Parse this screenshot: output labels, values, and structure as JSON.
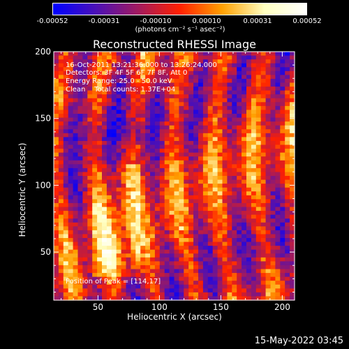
{
  "colorbar": {
    "ticks": [
      "-0.00052",
      "-0.00031",
      "-0.00010",
      "0.00010",
      "0.00031",
      "0.00052"
    ],
    "units": "(photons cm⁻² s⁻¹ asec⁻²)"
  },
  "chart_data": {
    "type": "heatmap",
    "title": "Reconstructed RHESSI Image",
    "xlabel": "Heliocentric X (arcsec)",
    "ylabel": "Heliocentric Y (arcsec)",
    "xlim": [
      14,
      210
    ],
    "ylim": [
      14,
      200
    ],
    "xticks": [
      "50",
      "100",
      "150",
      "200"
    ],
    "yticks": [
      "50",
      "100",
      "150",
      "200"
    ],
    "value_range": [
      -0.00052,
      0.00052
    ],
    "colormap": [
      "#0000ff",
      "#4a0fb8",
      "#a01a60",
      "#ff2000",
      "#ffa000",
      "#ffffc0",
      "#ffffff"
    ],
    "peak_position": [
      114,
      17
    ]
  },
  "annotations": {
    "line1": "16-Oct-2011 13:21:36.000 to 13:26:24.000",
    "line2": "Detectors: 3F 4F 5F 6F 7F 8F, Att 0",
    "line3": "Energy Range: 25.0 - 50.0 keV",
    "line4": "Clean    Total counts: 1.37E+04",
    "peak": "Position of Peak = [114,17]"
  },
  "footer": {
    "date": "15-May-2022 03:45"
  }
}
